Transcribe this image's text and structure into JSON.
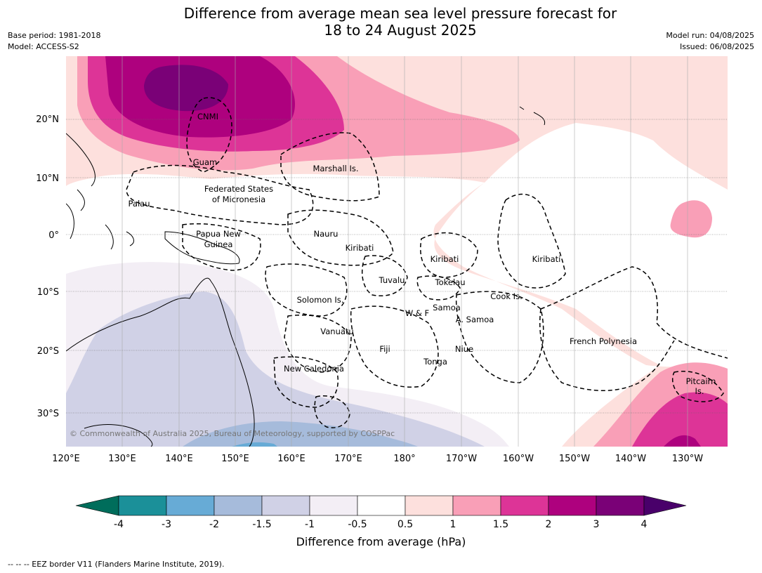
{
  "title_line1": "Difference from average mean sea level pressure forecast for",
  "title_line2": "18 to 24 August 2025",
  "meta_left": [
    "Base period: 1981-2018",
    "Model: ACCESS-S2"
  ],
  "meta_right": [
    "Model run: 04/08/2025",
    "Issued: 06/08/2025"
  ],
  "lat_labels": [
    "20°N",
    "10°N",
    "0°",
    "10°S",
    "20°S",
    "30°S"
  ],
  "lon_labels": [
    "120°E",
    "130°E",
    "140°E",
    "150°E",
    "160°E",
    "170°E",
    "180°",
    "170°W",
    "160°W",
    "150°W",
    "140°W",
    "130°W"
  ],
  "places": [
    "CNMI",
    "Guam",
    "Marshall Is.",
    "Federated States",
    "of Micronesia",
    "Palau",
    "Papua New",
    "Guinea",
    "Nauru",
    "Kiribati",
    "Kiribati",
    "Kiribati",
    "Tuvalu",
    "Tokelau",
    "Solomon Is.",
    "Samoa",
    "W & F",
    "A. Samoa",
    "Cook Is.",
    "Vanuatu",
    "Fiji",
    "Niue",
    "Tonga",
    "French Polynesia",
    "New Caledonia",
    "Pitcairn",
    "Is."
  ],
  "copyright": "© Commonwealth of Australia 2025, Bureau of Meteorology, supported by COSPPac",
  "colorbar": {
    "ticks": [
      "-4",
      "-3",
      "-2",
      "-1.5",
      "-1",
      "-0.5",
      "0.5",
      "1",
      "1.5",
      "2",
      "3",
      "4"
    ],
    "colors": [
      "#006d5b",
      "#1b9099",
      "#67abd6",
      "#a6bbdb",
      "#d0d1e6",
      "#f3eef5",
      "#ffffff",
      "#fde0dd",
      "#f99fb7",
      "#dd3497",
      "#ae017e",
      "#7a0177",
      "#49006a"
    ],
    "title": "Difference from average (hPa)"
  },
  "footer": "--  --  -- EEZ border V11 (Flanders Marine Institute, 2019)."
}
